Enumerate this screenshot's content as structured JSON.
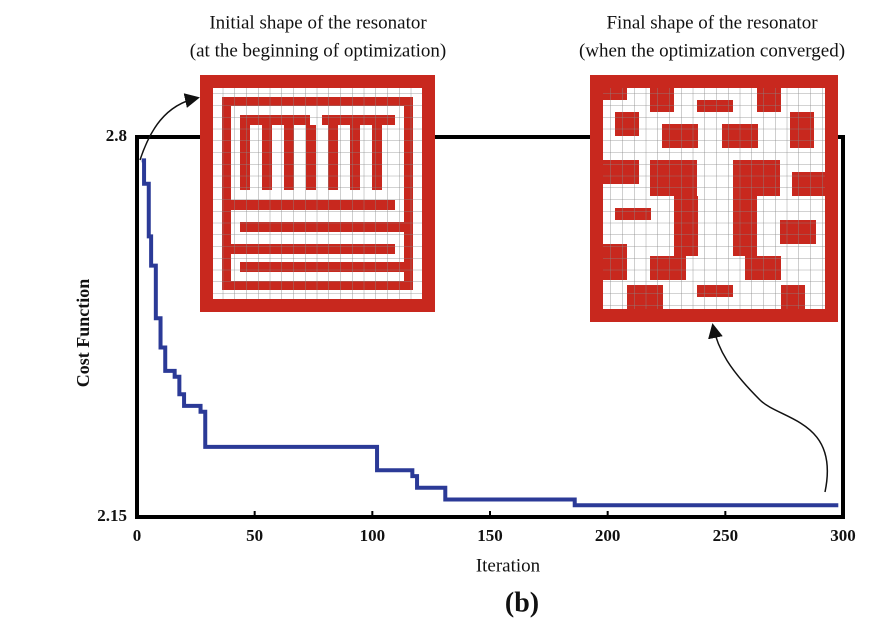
{
  "chart_data": {
    "type": "line",
    "step": "post",
    "color": "#2b3a97",
    "x": [
      2,
      3,
      5,
      6,
      8,
      10,
      12,
      16,
      18,
      20,
      27,
      29,
      93,
      102,
      117,
      119,
      131,
      154,
      186,
      239,
      298
    ],
    "values": [
      2.76,
      2.72,
      2.63,
      2.58,
      2.49,
      2.44,
      2.4,
      2.39,
      2.36,
      2.34,
      2.33,
      2.27,
      2.27,
      2.23,
      2.22,
      2.2,
      2.18,
      2.18,
      2.17,
      2.17,
      2.17
    ],
    "xlim": [
      0,
      300
    ],
    "xticks": [
      0,
      50,
      100,
      150,
      200,
      250,
      300
    ],
    "ylim": [
      2.15,
      2.8
    ],
    "yticks": [
      2.15,
      2.8
    ],
    "x_label": "Iteration",
    "y_label": "Cost Function",
    "caption": "(b)",
    "annotations": [
      "Initial shape of the resonator",
      "(at the beginning of optimization)",
      "Final shape of the resonator",
      "(when the optimization converged)"
    ]
  }
}
